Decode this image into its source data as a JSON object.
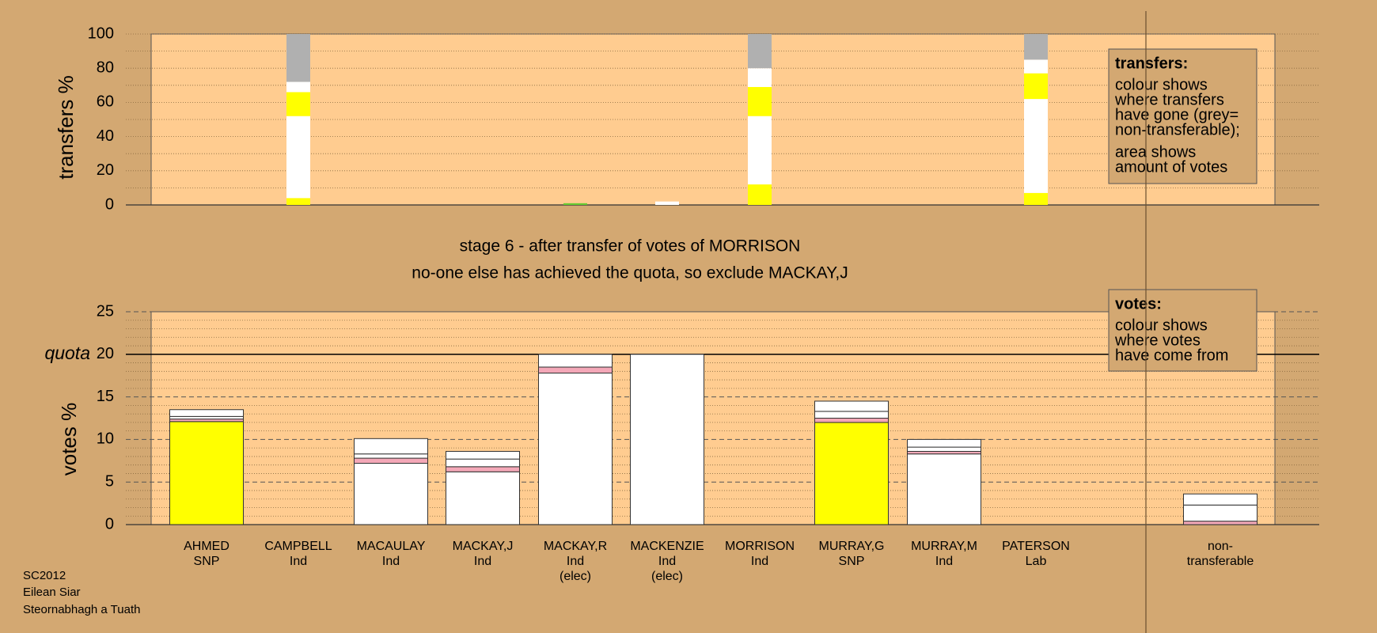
{
  "chart_data": [
    {
      "type": "bar",
      "stacked": true,
      "ylabel": "transfers %",
      "ylim": [
        0,
        100
      ],
      "yticks": [
        0,
        20,
        40,
        60,
        80,
        100
      ],
      "minor_yticks": [
        10,
        30,
        50,
        70,
        90
      ],
      "grid": true,
      "series": [
        {
          "color": "#66cc33",
          "values": [
            null,
            null,
            null,
            null,
            1,
            null,
            null,
            null,
            null,
            null
          ]
        },
        {
          "color": "#ffff00",
          "values": [
            null,
            4,
            null,
            null,
            null,
            null,
            12,
            null,
            null,
            7
          ]
        },
        {
          "color": "#ffffff",
          "values": [
            null,
            48,
            null,
            null,
            null,
            2,
            40,
            null,
            null,
            55
          ]
        },
        {
          "color": "#ffff00",
          "values": [
            null,
            14,
            null,
            null,
            null,
            null,
            17,
            null,
            null,
            15
          ]
        },
        {
          "color": "#ffffff",
          "values": [
            null,
            6,
            null,
            null,
            null,
            null,
            11,
            null,
            null,
            8
          ]
        },
        {
          "color": "#b0b0b0",
          "values": [
            null,
            28,
            null,
            null,
            null,
            null,
            20,
            null,
            null,
            15
          ]
        }
      ],
      "annotation": {
        "heading": "transfers:",
        "paragraphs": [
          [
            "colour shows",
            "where transfers",
            "have gone (grey=",
            "non-transferable);"
          ],
          [
            "area shows",
            "amount of votes"
          ]
        ]
      }
    },
    {
      "type": "bar",
      "stacked": true,
      "ylabel": "votes %",
      "title": "stage 6 - after transfer of votes of MORRISON",
      "subtitle": "no-one else has achieved the quota, so exclude MACKAY,J",
      "categories": [
        [
          "AHMED",
          "SNP"
        ],
        [
          "CAMPBELL",
          "Ind"
        ],
        [
          "MACAULAY",
          "Ind"
        ],
        [
          "MACKAY,J",
          "Ind"
        ],
        [
          "MACKAY,R",
          "Ind",
          "(elec)"
        ],
        [
          "MACKENZIE",
          "Ind",
          "(elec)"
        ],
        [
          "MORRISON",
          "Ind"
        ],
        [
          "MURRAY,G",
          "SNP"
        ],
        [
          "MURRAY,M",
          "Ind"
        ],
        [
          "PATERSON",
          "Lab"
        ],
        [
          "non-",
          "transferable"
        ]
      ],
      "ylim": [
        0,
        25
      ],
      "yticks": [
        0,
        5,
        10,
        15,
        20,
        25
      ],
      "minor_yticks": [
        1,
        2,
        3,
        4,
        6,
        7,
        8,
        9,
        11,
        12,
        13,
        14,
        16,
        17,
        18,
        19,
        21,
        22,
        23,
        24
      ],
      "grid": true,
      "quota": {
        "value": 20,
        "label": "quota"
      },
      "series": [
        {
          "color": "#ffff00",
          "values": [
            12.1,
            null,
            null,
            null,
            null,
            null,
            null,
            12.0,
            null,
            null,
            null
          ]
        },
        {
          "color": "#ffffff",
          "values": [
            null,
            null,
            7.2,
            6.2,
            17.8,
            20,
            null,
            null,
            8.3,
            null,
            null
          ]
        },
        {
          "color": "#f4a8b8",
          "values": [
            0.3,
            null,
            0.6,
            0.6,
            0.7,
            null,
            null,
            0.5,
            0.3,
            null,
            0.4
          ]
        },
        {
          "color": "#ffffff",
          "values": [
            0.3,
            null,
            0.5,
            0.9,
            1.5,
            null,
            null,
            0.8,
            0.5,
            null,
            1.9
          ]
        },
        {
          "color": "#ffffff",
          "values": [
            0.8,
            null,
            1.8,
            0.9,
            null,
            null,
            null,
            1.2,
            0.9,
            null,
            1.3
          ]
        }
      ],
      "annotation": {
        "heading": "votes:",
        "paragraphs": [
          [
            "colour shows",
            "where votes",
            "have come from"
          ]
        ]
      }
    }
  ],
  "footer": [
    "SC2012",
    "Eilean Siar",
    "Steornabhagh a Tuath"
  ]
}
